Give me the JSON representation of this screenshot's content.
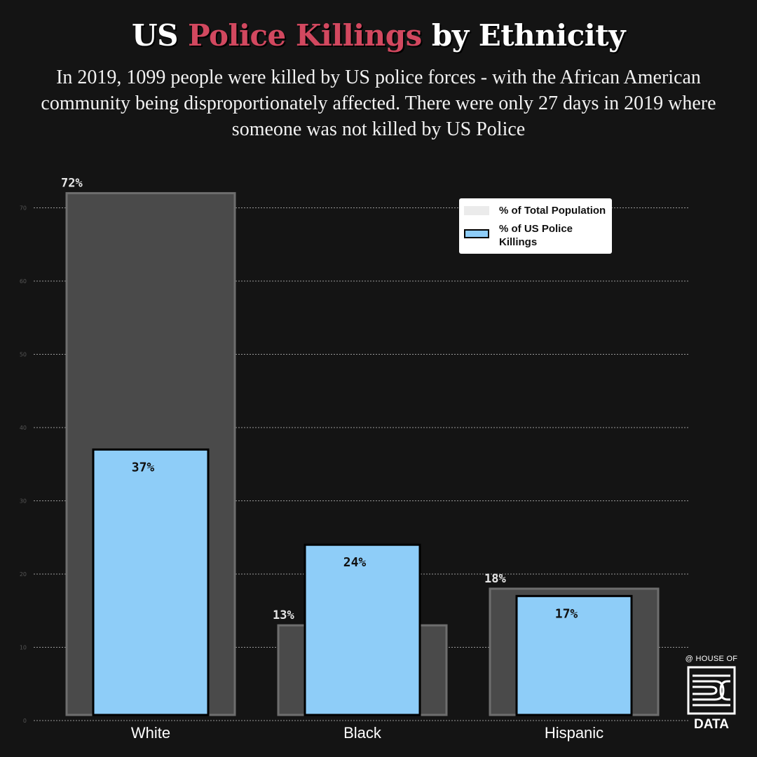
{
  "title": {
    "part1": "US",
    "part2": "Police Killings",
    "part3": "by Ethnicity"
  },
  "subtitle": "In 2019, 1099 people were killed by US police forces - with the African American community being disproportionately affected. There were only 27 days in 2019 where someone was not killed by US Police",
  "legend": {
    "population": "% of Total Population",
    "killings": "% of US Police Killings"
  },
  "brand": {
    "top": "@ HOUSE OF",
    "bottom": "DATA"
  },
  "colors": {
    "accent": "#d2485f",
    "population_bar": "#4a4a4a",
    "killings_bar": "#8ecdf8",
    "background": "#141414"
  },
  "chart_data": {
    "type": "bar",
    "categories": [
      "White",
      "Black",
      "Hispanic"
    ],
    "series": [
      {
        "name": "% of Total Population",
        "values": [
          72,
          13,
          18
        ],
        "labels": [
          "72%",
          "13%",
          "18%"
        ]
      },
      {
        "name": "% of US Police Killings",
        "values": [
          37,
          24,
          17
        ],
        "labels": [
          "37%",
          "24%",
          "17%"
        ]
      }
    ],
    "yticks": [
      0,
      10,
      20,
      30,
      40,
      50,
      60,
      70
    ],
    "ylim": [
      0,
      75
    ],
    "grid": true,
    "legend_position": "top-right",
    "xlabel": "",
    "ylabel": ""
  }
}
